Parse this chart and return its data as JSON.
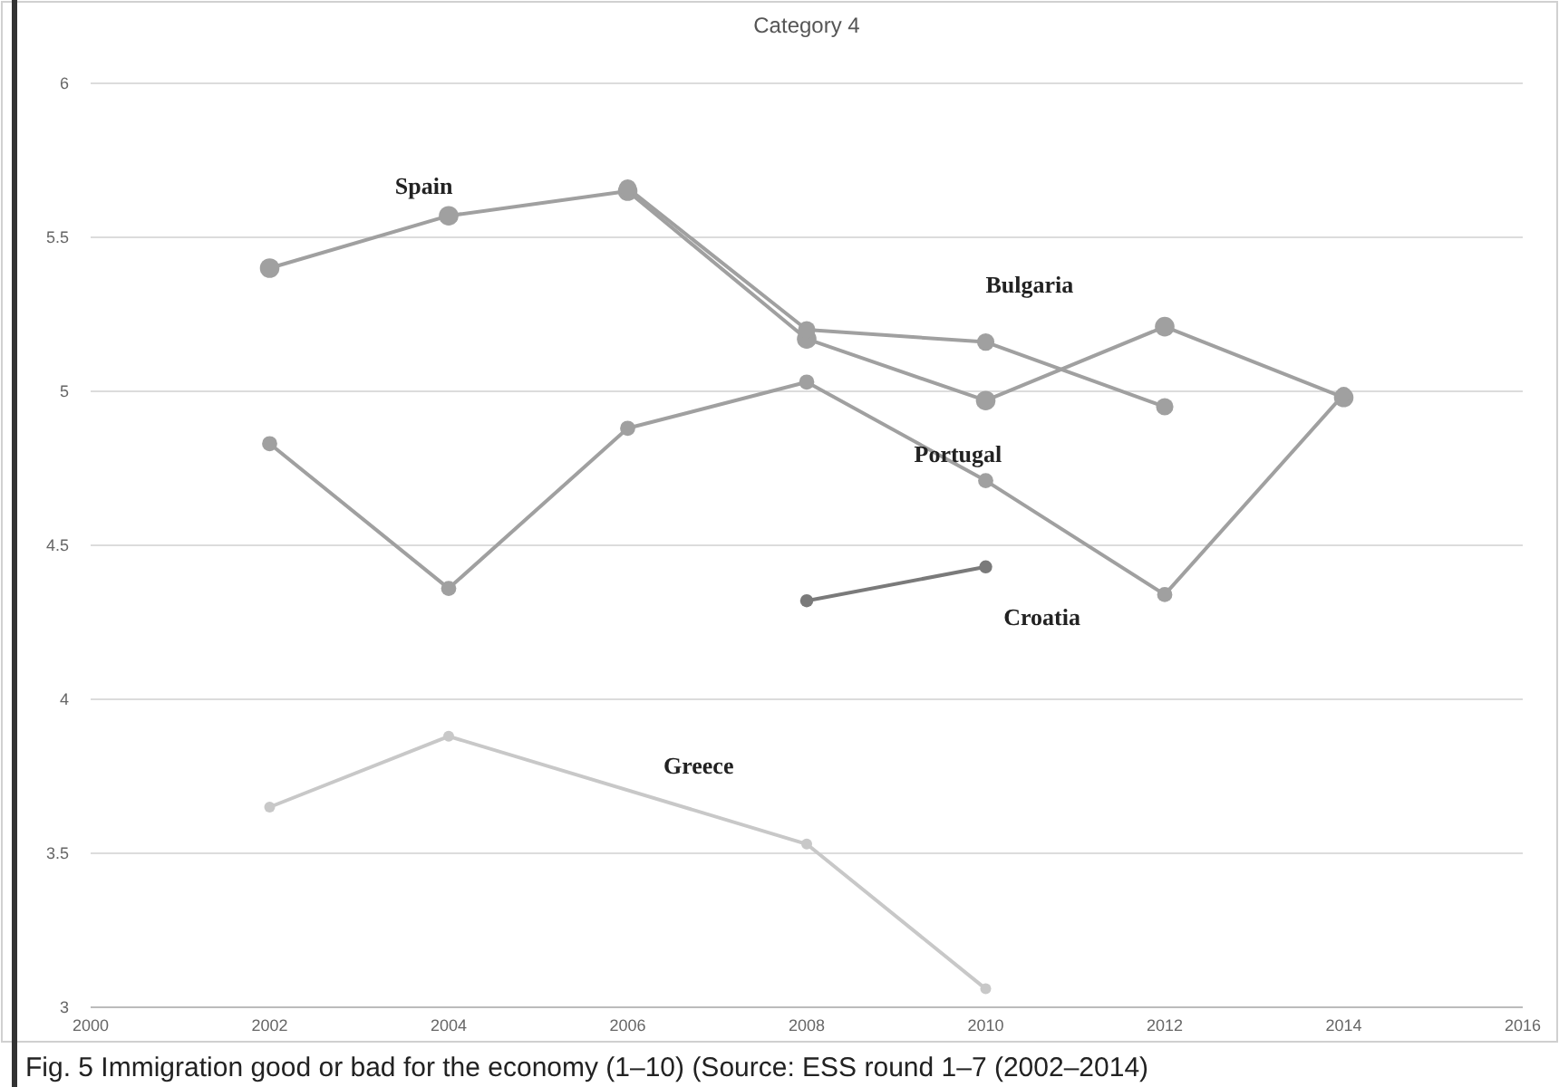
{
  "chart_data": {
    "type": "line",
    "title": "Category 4",
    "x": [
      2002,
      2004,
      2006,
      2008,
      2010,
      2012,
      2014
    ],
    "series": [
      {
        "name": "Spain",
        "color": "#a0a0a0",
        "values": [
          5.4,
          5.57,
          5.65,
          5.17,
          4.97,
          5.21,
          4.98
        ]
      },
      {
        "name": "Bulgaria",
        "color": "#a0a0a0",
        "values": [
          null,
          null,
          5.66,
          5.2,
          5.16,
          4.95,
          null
        ]
      },
      {
        "name": "Portugal",
        "color": "#a0a0a0",
        "values": [
          4.83,
          4.36,
          4.88,
          5.03,
          4.71,
          4.34,
          4.99
        ]
      },
      {
        "name": "Croatia",
        "color": "#7a7a7a",
        "values": [
          null,
          null,
          null,
          4.32,
          4.43,
          null,
          null
        ]
      },
      {
        "name": "Greece",
        "color": "#c8c8c8",
        "values": [
          3.65,
          3.88,
          null,
          3.53,
          3.06,
          null,
          null
        ]
      }
    ],
    "xlim": [
      2000,
      2016
    ],
    "xticks": [
      2000,
      2002,
      2004,
      2006,
      2008,
      2010,
      2012,
      2014,
      2016
    ],
    "ylim": [
      3,
      6
    ],
    "yticks": [
      3,
      3.5,
      4,
      4.5,
      5,
      5.5,
      6
    ],
    "grid": "y",
    "marker": "circle",
    "legend": false,
    "annotations": [
      "Fig. 5 Immigration good or bad for the economy (1–10) (Source: ESS round 1–7 (2002–2014)"
    ]
  }
}
